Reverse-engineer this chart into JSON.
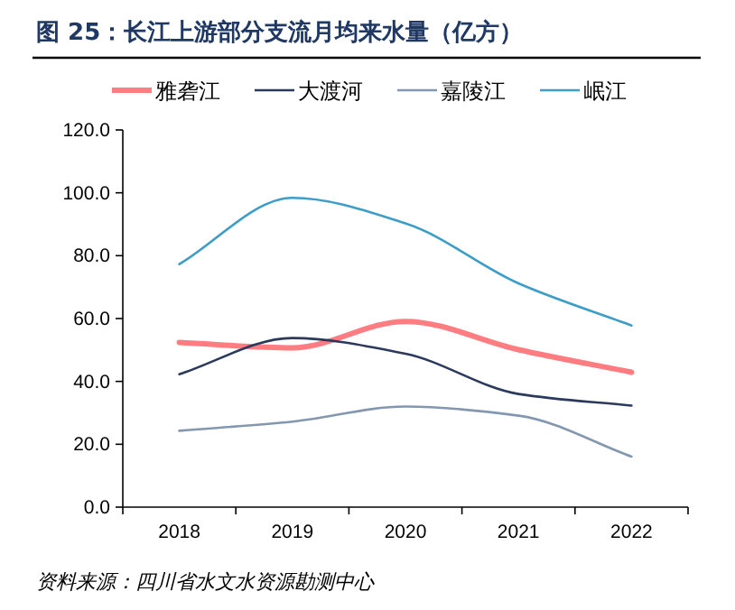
{
  "chart_data": {
    "type": "line",
    "title": "图 25：长江上游部分支流月均来水量（亿方）",
    "categories": [
      "2018",
      "2019",
      "2020",
      "2021",
      "2022"
    ],
    "series": [
      {
        "name": "雅砻江",
        "color": "#ff7c80",
        "values": [
          52.4,
          50.7,
          59.1,
          50.1,
          42.9
        ]
      },
      {
        "name": "大渡河",
        "color": "#2b3a5c",
        "values": [
          42.3,
          53.8,
          48.8,
          36.0,
          32.3
        ]
      },
      {
        "name": "嘉陵江",
        "color": "#8497b0",
        "values": [
          24.3,
          27.2,
          32.0,
          29.1,
          16.1
        ]
      },
      {
        "name": "岷江",
        "color": "#3c9dc8",
        "values": [
          77.3,
          98.4,
          90.3,
          71.2,
          57.8
        ]
      }
    ],
    "ylim": [
      0,
      120
    ],
    "yticks": [
      {
        "value": 0,
        "label": "0.0"
      },
      {
        "value": 20,
        "label": "20.0"
      },
      {
        "value": 40,
        "label": "40.0"
      },
      {
        "value": 60,
        "label": "60.0"
      },
      {
        "value": 80,
        "label": "80.0"
      },
      {
        "value": 100,
        "label": "100.0"
      },
      {
        "value": 120,
        "label": "120.0"
      }
    ],
    "legend": "top",
    "grid": false,
    "annotations": [
      "资料来源：四川省水文水资源勘测中心"
    ]
  }
}
